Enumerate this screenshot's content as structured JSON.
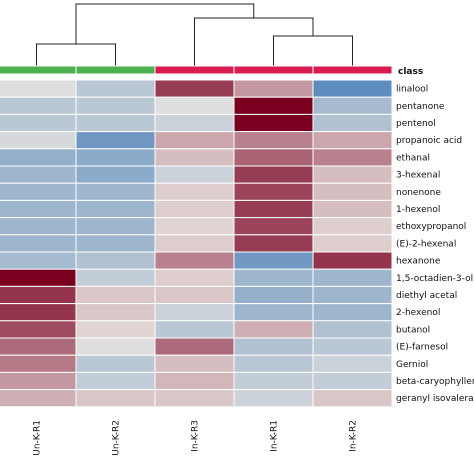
{
  "chart_data": {
    "type": "heatmap",
    "title": "",
    "class_label": "class",
    "columns": [
      "Un-K-R1",
      "Un-K-R2",
      "In-K-R3",
      "In-K-R1",
      "In-K-R2"
    ],
    "column_classes": [
      "Un",
      "Un",
      "In",
      "In",
      "In"
    ],
    "class_colors": {
      "Un": "#4caf50",
      "In": "#d81b50"
    },
    "rows": [
      "linalool",
      "pentanone",
      "pentenol",
      "propanoic acid",
      "ethanal",
      "3-hexenal",
      "nonenone",
      "1-hexenol",
      "ethoxypropanol",
      "(E)-2-hexenal",
      "hexanone",
      "1,5-octadien-3-ol",
      "diethyl acetal",
      "2-hexenol",
      "butanol",
      "(E)-farnesol",
      "Gerniol",
      "beta-caryophyllene",
      "geranyl isovalerate"
    ],
    "values": [
      [
        -0.1,
        -0.5,
        2.2,
        1.0,
        -1.5
      ],
      [
        -0.5,
        -0.5,
        -0.1,
        3.0,
        -0.7
      ],
      [
        -0.5,
        -0.5,
        -0.3,
        3.0,
        -0.6
      ],
      [
        -0.2,
        -1.3,
        0.8,
        1.3,
        0.8
      ],
      [
        -0.9,
        -1.0,
        0.5,
        1.7,
        1.3
      ],
      [
        -0.8,
        -1.0,
        -0.3,
        2.2,
        0.5
      ],
      [
        -0.8,
        -0.8,
        0.3,
        2.1,
        0.5
      ],
      [
        -0.8,
        -0.8,
        0.3,
        2.2,
        0.5
      ],
      [
        -0.8,
        -0.8,
        0.2,
        2.1,
        0.3
      ],
      [
        -0.8,
        -0.8,
        0.3,
        2.2,
        0.3
      ],
      [
        -0.7,
        -0.6,
        1.3,
        -1.3,
        2.3
      ],
      [
        3.0,
        -0.4,
        0.3,
        -0.8,
        -0.8
      ],
      [
        2.3,
        0.4,
        0.4,
        -0.9,
        -0.8
      ],
      [
        2.3,
        0.4,
        -0.3,
        -0.8,
        -0.8
      ],
      [
        2.0,
        0.2,
        -0.5,
        0.7,
        -0.6
      ],
      [
        1.6,
        -0.1,
        1.6,
        -0.6,
        -0.5
      ],
      [
        1.4,
        -0.5,
        0.5,
        -0.5,
        -0.3
      ],
      [
        1.0,
        -0.4,
        0.6,
        -0.4,
        -0.4
      ],
      [
        0.7,
        0.4,
        0.4,
        -0.3,
        0.4
      ]
    ],
    "color_scale": {
      "low": "#2f6fb2",
      "mid": "#e8e4e0",
      "high": "#7a0020",
      "vmin": -2,
      "vmax": 3
    },
    "column_dendrogram": true,
    "xlabel": "",
    "ylabel": ""
  }
}
